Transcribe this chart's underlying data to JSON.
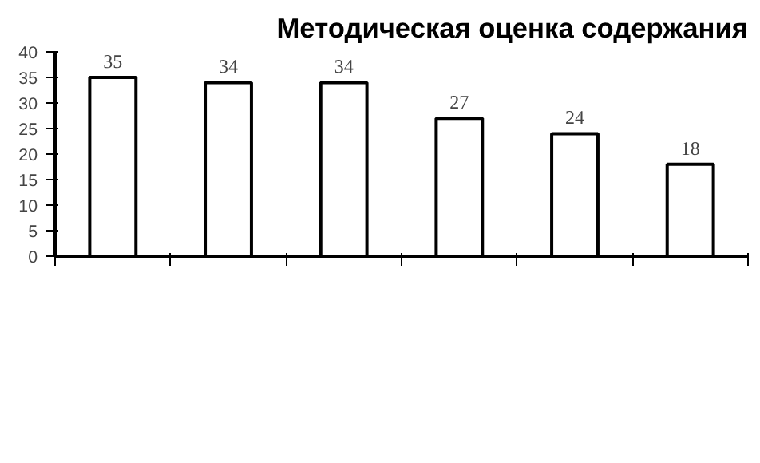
{
  "chart_data": {
    "type": "bar",
    "title": "Методическая оценка содержания",
    "categories": [
      null,
      null,
      null,
      null,
      null,
      null
    ],
    "values": [
      35,
      34,
      34,
      27,
      24,
      18
    ],
    "color": "#ffffff",
    "ylim": [
      0,
      40
    ],
    "yticks": [
      0,
      5,
      10,
      15,
      20,
      25,
      30,
      35,
      40
    ],
    "data_labels": true,
    "grid": false
  }
}
